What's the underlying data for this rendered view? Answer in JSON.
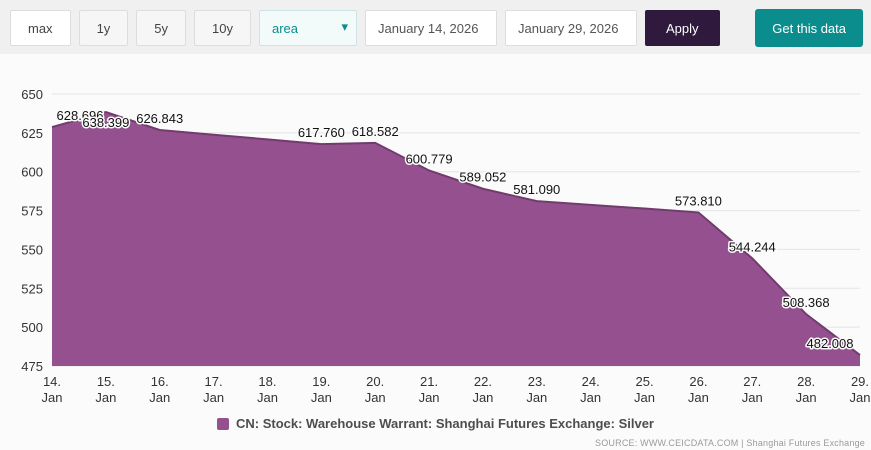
{
  "toolbar": {
    "range_buttons": [
      "max",
      "1y",
      "5y",
      "10y"
    ],
    "chart_type_select": {
      "value": "area"
    },
    "date_from": "January 14, 2026",
    "date_to": "January 29, 2026",
    "apply_label": "Apply",
    "get_data_label": "Get this data"
  },
  "chart_data": {
    "type": "area",
    "series_name": "CN: Stock: Warehouse Warrant: Shanghai Futures Exchange: Silver",
    "ylim": [
      475,
      650
    ],
    "yticks": [
      475,
      500,
      525,
      550,
      575,
      600,
      625,
      650
    ],
    "legend_position": "bottom",
    "grid": "horizontal",
    "points": [
      {
        "day": "14.",
        "month": "Jan",
        "value": 628.696,
        "label": "628.696"
      },
      {
        "day": "15.",
        "month": "Jan",
        "value": 638.399,
        "label": "638.399",
        "label_dy": 22
      },
      {
        "day": "16.",
        "month": "Jan",
        "value": 626.843,
        "label": "626.843"
      },
      {
        "day": "17.",
        "month": "Jan",
        "value": 623.8,
        "label": null,
        "estimated": true
      },
      {
        "day": "18.",
        "month": "Jan",
        "value": 620.8,
        "label": null,
        "estimated": true
      },
      {
        "day": "19.",
        "month": "Jan",
        "value": 617.76,
        "label": "617.760"
      },
      {
        "day": "20.",
        "month": "Jan",
        "value": 618.582,
        "label": "618.582"
      },
      {
        "day": "21.",
        "month": "Jan",
        "value": 600.779,
        "label": "600.779"
      },
      {
        "day": "22.",
        "month": "Jan",
        "value": 589.052,
        "label": "589.052"
      },
      {
        "day": "23.",
        "month": "Jan",
        "value": 581.09,
        "label": "581.090"
      },
      {
        "day": "24.",
        "month": "Jan",
        "value": 578.7,
        "label": null,
        "estimated": true
      },
      {
        "day": "25.",
        "month": "Jan",
        "value": 576.3,
        "label": null,
        "estimated": true
      },
      {
        "day": "26.",
        "month": "Jan",
        "value": 573.81,
        "label": "573.810"
      },
      {
        "day": "27.",
        "month": "Jan",
        "value": 544.244,
        "label": "544.244"
      },
      {
        "day": "28.",
        "month": "Jan",
        "value": 508.368,
        "label": "508.368"
      },
      {
        "day": "29.",
        "month": "Jan",
        "value": 482.008,
        "label": "482.008"
      }
    ]
  },
  "legend": {
    "label": "CN: Stock: Warehouse Warrant: Shanghai Futures Exchange: Silver"
  },
  "source": "SOURCE: WWW.CEICDATA.COM | Shanghai Futures Exchange",
  "colors": {
    "area": "#95508f",
    "line": "#713c6c",
    "accent_teal": "#0c8d8d",
    "apply_bg": "#2f1a3e"
  }
}
